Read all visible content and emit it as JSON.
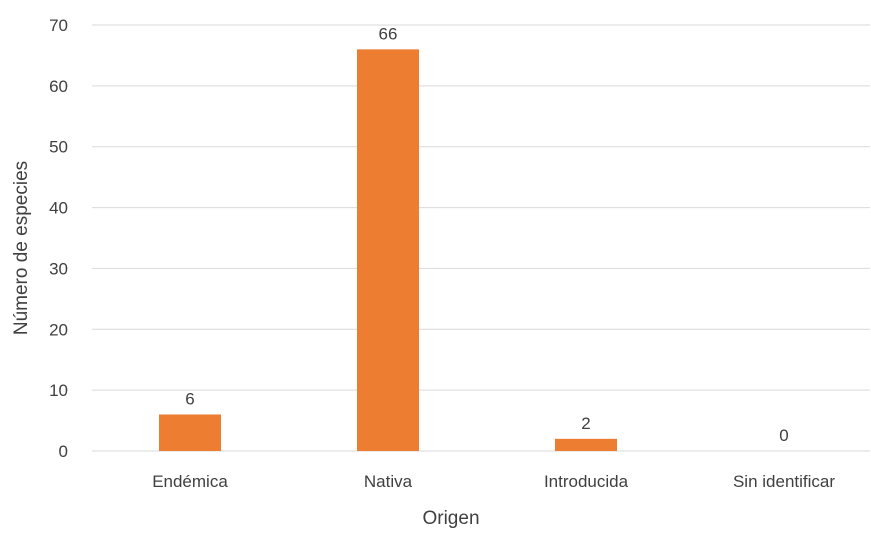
{
  "chart_data": {
    "type": "bar",
    "categories": [
      "Endémica",
      "Nativa",
      "Introducida",
      "Sin identificar"
    ],
    "values": [
      6,
      66,
      2,
      0
    ],
    "data_labels": [
      "6",
      "66",
      "2",
      "0"
    ],
    "title": "",
    "xlabel": "Origen",
    "ylabel": "Número de especies",
    "ylim": [
      0,
      70
    ],
    "yticks": [
      0,
      10,
      20,
      30,
      40,
      50,
      60,
      70
    ],
    "ytick_labels": [
      "0",
      "10",
      "20",
      "30",
      "40",
      "50",
      "60",
      "70"
    ],
    "grid": "horizontal",
    "legend": "none",
    "bar_color": "#ED7D31",
    "grid_color": "#D9D9D9"
  }
}
